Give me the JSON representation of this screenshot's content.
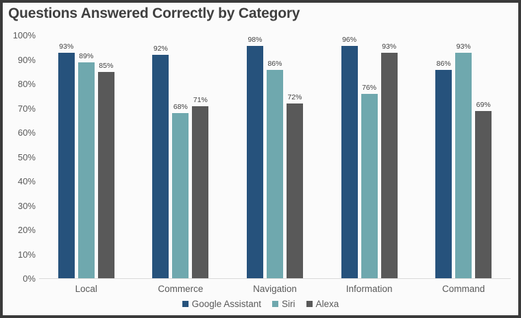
{
  "chart_data": {
    "type": "bar",
    "title": "Questions Answered Correctly by Category",
    "categories": [
      "Local",
      "Commerce",
      "Navigation",
      "Information",
      "Command"
    ],
    "series": [
      {
        "name": "Google Assistant",
        "color": "#26527C",
        "values": [
          93,
          92,
          98,
          96,
          86
        ]
      },
      {
        "name": "Siri",
        "color": "#6FA8AE",
        "values": [
          89,
          68,
          86,
          76,
          93
        ]
      },
      {
        "name": "Alexa",
        "color": "#595959",
        "values": [
          85,
          71,
          72,
          93,
          69
        ]
      }
    ],
    "value_label_format": "{v}%",
    "xlabel": "",
    "ylabel": "",
    "ylim": [
      0,
      100
    ],
    "yticks": [
      0,
      10,
      20,
      30,
      40,
      50,
      60,
      70,
      80,
      90,
      100
    ],
    "ytick_labels": [
      "0%",
      "10%",
      "20%",
      "30%",
      "40%",
      "50%",
      "60%",
      "70%",
      "80%",
      "90%",
      "100%"
    ],
    "grid": false,
    "legend_position": "bottom"
  },
  "frame": {
    "border_color": "#3a3a3a",
    "background_color": "#fbfbfb",
    "axis_line_color": "#d9d9d9",
    "title_color": "#404040",
    "tick_text_color": "#595959"
  }
}
